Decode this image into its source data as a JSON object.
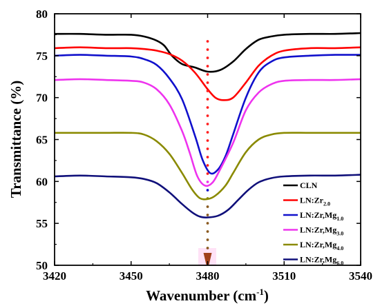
{
  "chart_data": {
    "type": "line",
    "xlabel": "Wavenumber (cm",
    "xlabel_sup": "-1",
    "xlabel_close": ")",
    "ylabel": "Transmittance (%)",
    "xlim": [
      3420,
      3540
    ],
    "ylim": [
      50,
      80
    ],
    "xticks": [
      3420,
      3450,
      3480,
      3510,
      3540
    ],
    "yticks": [
      50,
      55,
      60,
      65,
      70,
      75,
      80
    ],
    "legend_position": "bottom-right",
    "marker_x": 3480,
    "series": [
      {
        "name": "CLN",
        "name_main": "CLN",
        "name_sub": "",
        "color": "#000000",
        "x": [
          3420,
          3430,
          3440,
          3450,
          3455,
          3460,
          3463,
          3466,
          3470,
          3475,
          3480,
          3485,
          3490,
          3495,
          3500,
          3505,
          3510,
          3520,
          3530,
          3540
        ],
        "y": [
          77.6,
          77.6,
          77.5,
          77.5,
          77.3,
          76.8,
          76.2,
          75.0,
          74.0,
          73.6,
          73.1,
          73.3,
          74.3,
          75.8,
          76.9,
          77.3,
          77.5,
          77.6,
          77.6,
          77.7
        ]
      },
      {
        "name": "LN:Zr2.0",
        "name_main": "LN:Zr",
        "name_sub": "2.0",
        "color": "#ff0000",
        "x": [
          3420,
          3430,
          3440,
          3450,
          3455,
          3460,
          3465,
          3470,
          3475,
          3480,
          3483,
          3486,
          3490,
          3495,
          3500,
          3505,
          3510,
          3520,
          3530,
          3540
        ],
        "y": [
          75.9,
          76.0,
          75.9,
          75.9,
          75.8,
          75.6,
          75.2,
          74.4,
          73.0,
          71.0,
          70.0,
          69.7,
          70.0,
          71.8,
          73.8,
          75.0,
          75.6,
          75.9,
          75.9,
          76.0
        ]
      },
      {
        "name": "LN:Zr,Mg1.0",
        "name_main": "LN:Zr,Mg",
        "name_sub": "1.0",
        "color": "#1010cc",
        "x": [
          3420,
          3430,
          3440,
          3450,
          3455,
          3460,
          3465,
          3470,
          3475,
          3478,
          3481,
          3484,
          3487,
          3490,
          3495,
          3500,
          3505,
          3510,
          3520,
          3530,
          3540
        ],
        "y": [
          75.0,
          75.1,
          75.0,
          74.9,
          74.6,
          73.9,
          72.3,
          69.8,
          65.5,
          62.6,
          61.0,
          61.4,
          63.0,
          65.6,
          70.0,
          73.0,
          74.3,
          74.8,
          75.0,
          75.1,
          75.1
        ]
      },
      {
        "name": "LN:Zr,Mg3.0",
        "name_main": "LN:Zr,Mg",
        "name_sub": "3.0",
        "color": "#ee33ee",
        "x": [
          3420,
          3430,
          3440,
          3450,
          3455,
          3460,
          3465,
          3470,
          3473,
          3476,
          3479,
          3482,
          3485,
          3490,
          3495,
          3500,
          3505,
          3510,
          3520,
          3530,
          3540
        ],
        "y": [
          72.1,
          72.2,
          72.1,
          72.0,
          71.8,
          71.0,
          69.2,
          66.0,
          63.4,
          60.6,
          59.5,
          59.9,
          61.5,
          64.6,
          68.5,
          70.6,
          71.6,
          72.0,
          72.1,
          72.1,
          72.2
        ]
      },
      {
        "name": "LN:Zr,Mg4.0",
        "name_main": "LN:Zr,Mg",
        "name_sub": "4.0",
        "color": "#8a8a00",
        "x": [
          3420,
          3430,
          3440,
          3450,
          3455,
          3460,
          3465,
          3470,
          3474,
          3477,
          3480,
          3483,
          3487,
          3490,
          3495,
          3500,
          3505,
          3510,
          3520,
          3530,
          3540
        ],
        "y": [
          65.8,
          65.8,
          65.8,
          65.8,
          65.6,
          64.8,
          63.3,
          61.0,
          59.0,
          58.0,
          57.9,
          58.3,
          59.5,
          61.0,
          63.5,
          65.0,
          65.6,
          65.8,
          65.8,
          65.8,
          65.8
        ]
      },
      {
        "name": "LN:Zr,Mg6.0",
        "name_main": "LN:Zr,Mg",
        "name_sub": "6.0",
        "color": "#10107a",
        "x": [
          3420,
          3430,
          3440,
          3450,
          3455,
          3460,
          3465,
          3470,
          3474,
          3477,
          3480,
          3484,
          3488,
          3492,
          3496,
          3500,
          3505,
          3510,
          3520,
          3530,
          3540
        ],
        "y": [
          60.6,
          60.7,
          60.6,
          60.5,
          60.3,
          59.8,
          58.7,
          57.3,
          56.3,
          55.8,
          55.7,
          55.9,
          56.6,
          57.8,
          59.0,
          59.9,
          60.4,
          60.6,
          60.7,
          60.7,
          60.8
        ]
      }
    ]
  }
}
